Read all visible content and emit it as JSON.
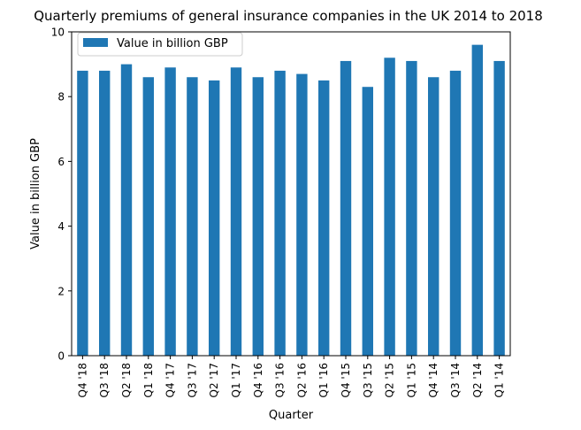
{
  "chart_data": {
    "type": "bar",
    "title": "Quarterly premiums of general insurance companies in the UK 2014 to 2018",
    "xlabel": "Quarter",
    "ylabel": "Value in billion GBP",
    "categories": [
      "Q4 '18",
      "Q3 '18",
      "Q2 '18",
      "Q1 '18",
      "Q4 '17",
      "Q3 '17",
      "Q2 '17",
      "Q1 '17",
      "Q4 '16",
      "Q3 '16",
      "Q2 '16",
      "Q1 '16",
      "Q4 '15",
      "Q3 '15",
      "Q2 '15",
      "Q1 '15",
      "Q4 '14",
      "Q3 '14",
      "Q2 '14",
      "Q1 '14"
    ],
    "series": [
      {
        "name": "Value in billion GBP",
        "color": "#1f77b4",
        "values": [
          8.8,
          8.8,
          9.0,
          8.6,
          8.9,
          8.6,
          8.5,
          8.9,
          8.6,
          8.8,
          8.7,
          8.5,
          9.1,
          8.3,
          9.2,
          9.1,
          8.6,
          8.8,
          9.6,
          9.1
        ]
      }
    ],
    "ylim": [
      0,
      10
    ],
    "yticks": [
      "0",
      "2",
      "4",
      "6",
      "8",
      "10"
    ],
    "grid": false,
    "legend_position": "upper-left"
  }
}
